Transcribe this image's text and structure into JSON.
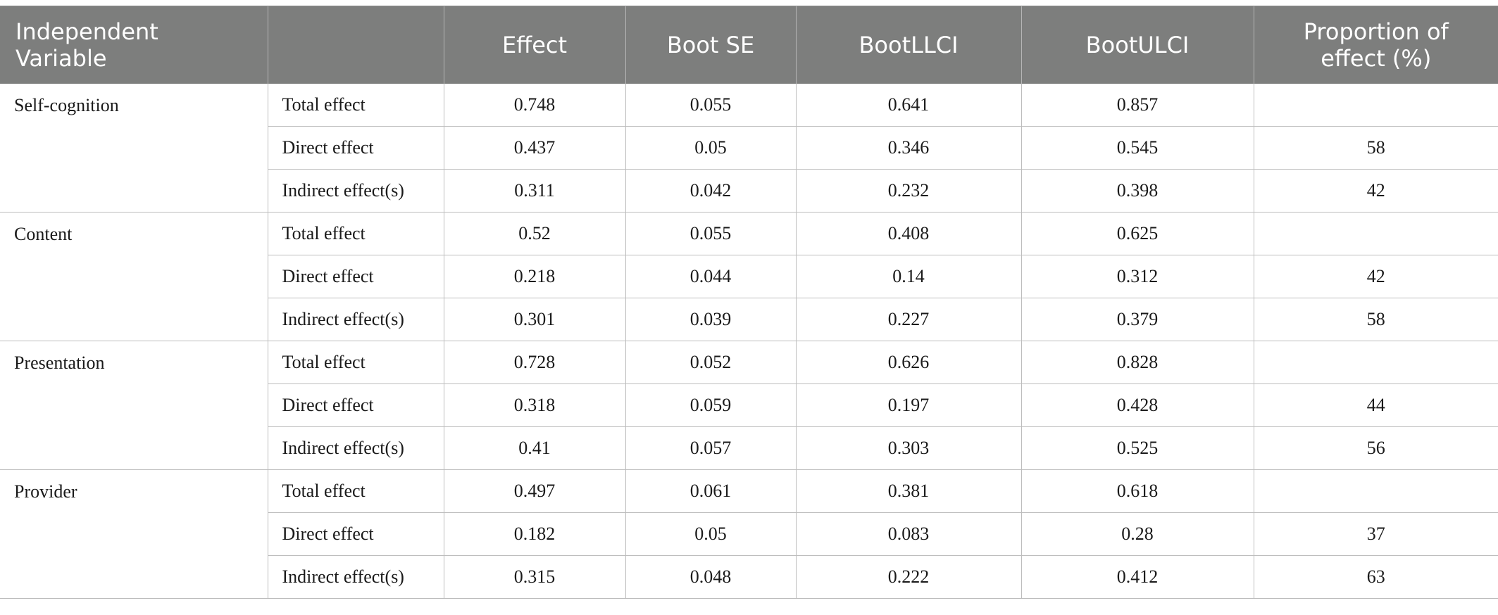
{
  "table": {
    "headers": [
      "Independent Variable",
      "",
      "Effect",
      "Boot SE",
      "BootLLCI",
      "BootULCI",
      "Proportion of effect (%)"
    ],
    "groups": [
      {
        "variable": "Self-cognition",
        "rows": [
          {
            "type": "Total effect",
            "effect": "0.748",
            "boot_se": "0.055",
            "llci": "0.641",
            "ulci": "0.857",
            "proportion": ""
          },
          {
            "type": "Direct effect",
            "effect": "0.437",
            "boot_se": "0.05",
            "llci": "0.346",
            "ulci": "0.545",
            "proportion": "58"
          },
          {
            "type": "Indirect effect(s)",
            "effect": "0.311",
            "boot_se": "0.042",
            "llci": "0.232",
            "ulci": "0.398",
            "proportion": "42"
          }
        ]
      },
      {
        "variable": "Content",
        "rows": [
          {
            "type": "Total effect",
            "effect": "0.52",
            "boot_se": "0.055",
            "llci": "0.408",
            "ulci": "0.625",
            "proportion": ""
          },
          {
            "type": "Direct effect",
            "effect": "0.218",
            "boot_se": "0.044",
            "llci": "0.14",
            "ulci": "0.312",
            "proportion": "42"
          },
          {
            "type": "Indirect effect(s)",
            "effect": "0.301",
            "boot_se": "0.039",
            "llci": "0.227",
            "ulci": "0.379",
            "proportion": "58"
          }
        ]
      },
      {
        "variable": "Presentation",
        "rows": [
          {
            "type": "Total effect",
            "effect": "0.728",
            "boot_se": "0.052",
            "llci": "0.626",
            "ulci": "0.828",
            "proportion": ""
          },
          {
            "type": "Direct effect",
            "effect": "0.318",
            "boot_se": "0.059",
            "llci": "0.197",
            "ulci": "0.428",
            "proportion": "44"
          },
          {
            "type": "Indirect effect(s)",
            "effect": "0.41",
            "boot_se": "0.057",
            "llci": "0.303",
            "ulci": "0.525",
            "proportion": "56"
          }
        ]
      },
      {
        "variable": "Provider",
        "rows": [
          {
            "type": "Total effect",
            "effect": "0.497",
            "boot_se": "0.061",
            "llci": "0.381",
            "ulci": "0.618",
            "proportion": ""
          },
          {
            "type": "Direct effect",
            "effect": "0.182",
            "boot_se": "0.05",
            "llci": "0.083",
            "ulci": "0.28",
            "proportion": "37"
          },
          {
            "type": "Indirect effect(s)",
            "effect": "0.315",
            "boot_se": "0.048",
            "llci": "0.222",
            "ulci": "0.412",
            "proportion": "63"
          }
        ]
      }
    ]
  }
}
